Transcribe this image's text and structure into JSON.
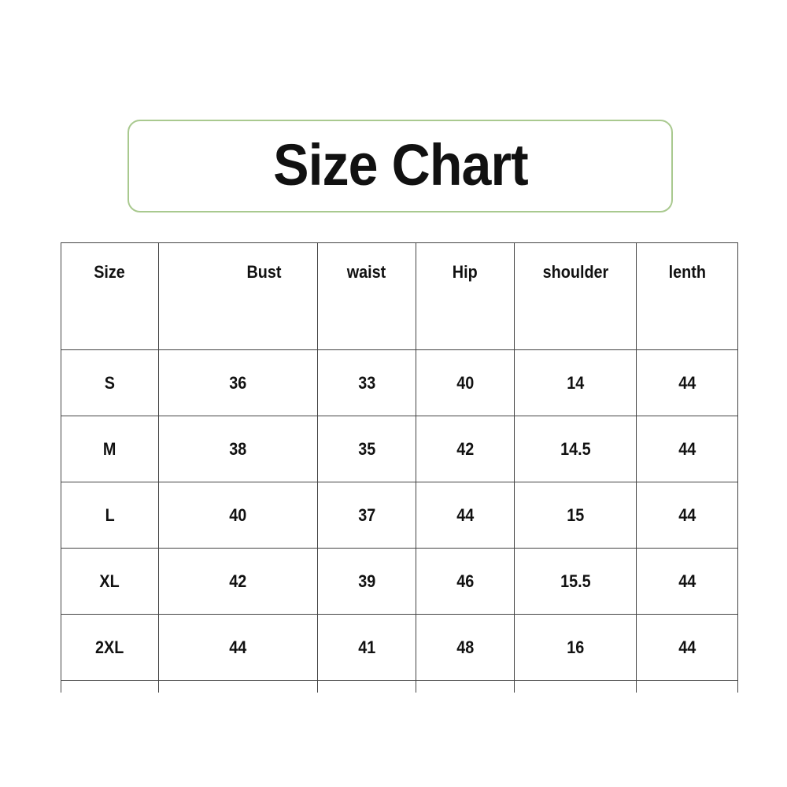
{
  "title": "Size Chart",
  "colors": {
    "title_border": "#a9c98f",
    "grid": "#444444",
    "text": "#111111"
  },
  "table": {
    "headers": [
      "Size",
      "Bust",
      "waist",
      "Hip",
      "shoulder",
      "lenth"
    ],
    "rows": [
      [
        "S",
        "36",
        "33",
        "40",
        "14",
        "44"
      ],
      [
        "M",
        "38",
        "35",
        "42",
        "14.5",
        "44"
      ],
      [
        "L",
        "40",
        "37",
        "44",
        "15",
        "44"
      ],
      [
        "XL",
        "42",
        "39",
        "46",
        "15.5",
        "44"
      ],
      [
        "2XL",
        "44",
        "41",
        "48",
        "16",
        "44"
      ]
    ]
  }
}
